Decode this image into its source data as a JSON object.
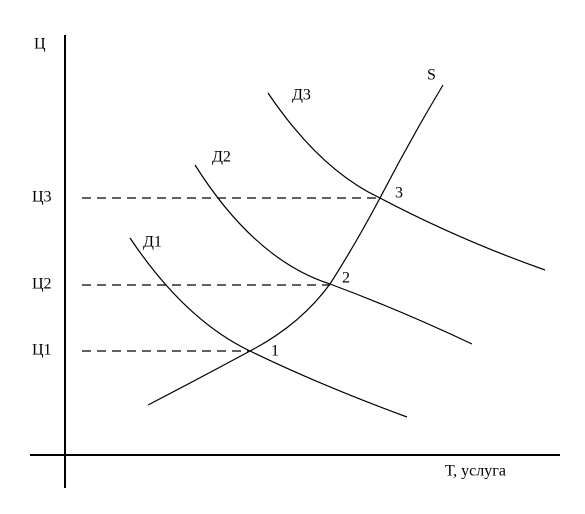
{
  "axes": {
    "y_label": "Ц",
    "x_label": "Т, услуга"
  },
  "curves": {
    "supply": "S",
    "demand_1": "Д1",
    "demand_2": "Д2",
    "demand_3": "Д3"
  },
  "price_levels": [
    "Ц1",
    "Ц2",
    "Ц3"
  ],
  "points": [
    "1",
    "2",
    "3"
  ]
}
